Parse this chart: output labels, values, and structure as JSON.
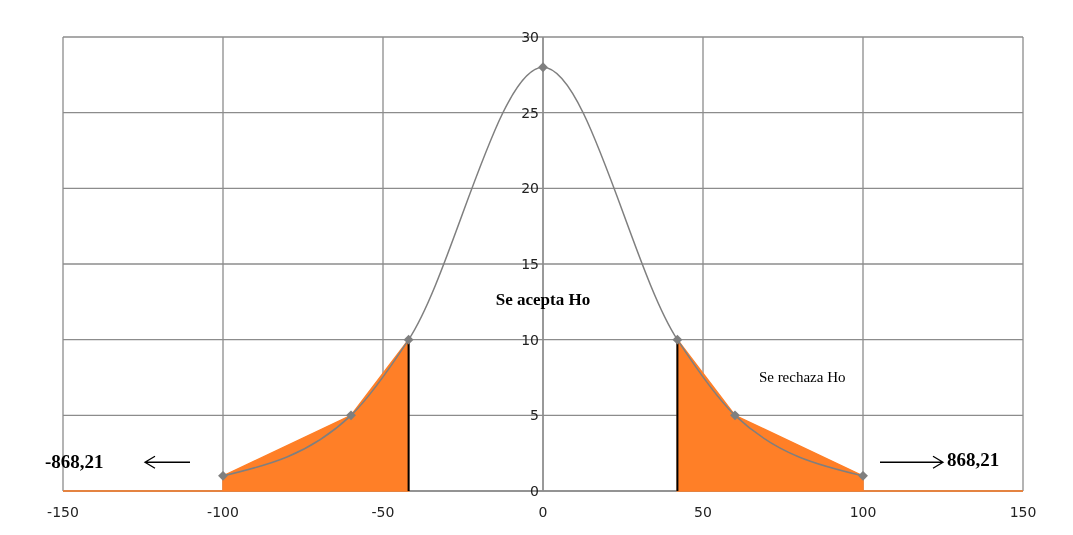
{
  "chart_data": {
    "type": "line",
    "xlim": [
      -150,
      150
    ],
    "ylim": [
      0,
      30
    ],
    "xticks": [
      -150,
      -100,
      -50,
      0,
      50,
      100,
      150
    ],
    "yticks": [
      0,
      5,
      10,
      15,
      20,
      25,
      30
    ],
    "grid": true,
    "line_style": "solid",
    "series": [
      {
        "type": "area",
        "color": "#ff7f27",
        "x": [
          -150,
          -100,
          -100,
          -60,
          -42
        ],
        "values": [
          0,
          0,
          1,
          5,
          10
        ]
      },
      {
        "type": "area",
        "color": "#ff7f27",
        "x": [
          42,
          60,
          100,
          100,
          150
        ],
        "values": [
          10,
          5,
          1,
          0,
          0
        ]
      },
      {
        "marker": "diamond",
        "color": "#7f7f7f",
        "x": [
          -100,
          -60,
          -42,
          0,
          42,
          60,
          100
        ],
        "values": [
          1,
          5,
          10,
          28,
          10,
          5,
          1
        ]
      }
    ],
    "ref_lines": [
      {
        "axis": "x",
        "value": -42,
        "color": "#000000"
      },
      {
        "axis": "x",
        "value": 42,
        "color": "#000000"
      }
    ],
    "annotations": [
      "Se acepta Ho",
      "Se rechaza Ho",
      "-868,21",
      "868,21"
    ]
  }
}
